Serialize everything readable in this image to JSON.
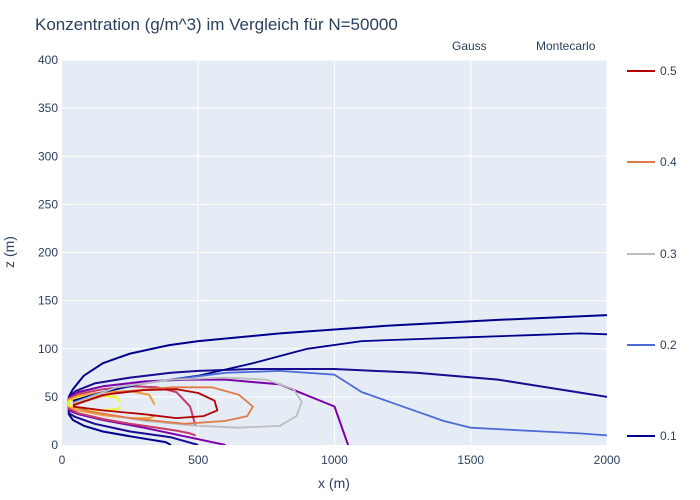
{
  "chart_data": {
    "type": "line",
    "title": "Konzentration (g/m^3) im Vergleich für N=50000",
    "xlabel": "x (m)",
    "ylabel": "z (m)",
    "xlim": [
      0,
      2000
    ],
    "ylim": [
      0,
      400
    ],
    "x_ticks": [
      "0",
      "500",
      "1000",
      "1500",
      "2000"
    ],
    "y_ticks": [
      "0",
      "50",
      "100",
      "150",
      "200",
      "250",
      "300",
      "350",
      "400"
    ],
    "grid": true,
    "legend": {
      "placement": "top-right",
      "entries": [
        "Gauss",
        "Montecarlo"
      ]
    },
    "colorbar": {
      "levels": [
        "0.1",
        "0.2",
        "0.3",
        "0.4",
        "0.5"
      ]
    },
    "colors": {
      "plot_bg": "#e5ecf6",
      "grid": "#ffffff",
      "text": "#2a3f5f",
      "level_0_1": "#00008b",
      "level_0_15": "#1a0c91",
      "level_0_2": "#7b00a8",
      "level_0_25": "#b5108f",
      "level_0_3": "#c63c6a",
      "level_0_35": "#e06040",
      "level_0_4": "#f19e3c",
      "level_0_5": "#f0f921",
      "mc_0_1": "#00008b",
      "mc_0_2": "#4d6bd6",
      "mc_0_3": "#bdbdbd",
      "mc_0_4": "#e07b49",
      "mc_0_5": "#b30000"
    },
    "series": [
      {
        "name": "Gauss",
        "level": 0.1,
        "x": [
          25,
          40,
          80,
          150,
          250,
          380,
          400,
          500,
          800,
          1200,
          1600,
          2000
        ],
        "upper_z": [
          50,
          58,
          72,
          85,
          95,
          103,
          104,
          108,
          116,
          124,
          130,
          135
        ],
        "lower_z": [
          32,
          26,
          20,
          14,
          9,
          3,
          0
        ]
      },
      {
        "name": "Gauss",
        "level": 0.15,
        "x": [
          25,
          50,
          120,
          250,
          400,
          500,
          700,
          1000,
          1300,
          1600,
          2000
        ],
        "upper_z": [
          50,
          56,
          64,
          70,
          75,
          77,
          79,
          79,
          75,
          68,
          50
        ],
        "lower_z": [
          33,
          29,
          22,
          14,
          8,
          0
        ]
      },
      {
        "name": "Gauss",
        "level": 0.2,
        "x": [
          25,
          60,
          150,
          300,
          450,
          600,
          800,
          1000,
          1050
        ],
        "upper_z": [
          49,
          55,
          61,
          66,
          68,
          68,
          63,
          40,
          0
        ],
        "lower_z": [
          36,
          32,
          26,
          18,
          9,
          0
        ]
      },
      {
        "name": "Gauss",
        "level": 0.3,
        "x": [
          25,
          60,
          150,
          250,
          350,
          420,
          470,
          490
        ],
        "upper_z": [
          48,
          53,
          58,
          61,
          60,
          55,
          40,
          20
        ],
        "lower_z": [
          38,
          33,
          27,
          22,
          18,
          15,
          12,
          10
        ]
      },
      {
        "name": "Gauss",
        "level": 0.4,
        "x": [
          25,
          60,
          150,
          250,
          320,
          340
        ],
        "upper_z": [
          47,
          51,
          55,
          56,
          52,
          42
        ],
        "lower_z": [
          40,
          36,
          31,
          28,
          28,
          30
        ]
      },
      {
        "name": "Gauss",
        "level": 0.5,
        "x": [
          25,
          60,
          130,
          200,
          215
        ],
        "upper_z": [
          45,
          49,
          51,
          50,
          44
        ],
        "lower_z": [
          41,
          38,
          36,
          37,
          39
        ]
      },
      {
        "name": "Montecarlo",
        "level": 0.1,
        "x": [
          40,
          150,
          300,
          500,
          700,
          900,
          1100,
          1300,
          1500,
          1700,
          1900,
          2000
        ],
        "z": [
          46,
          55,
          64,
          72,
          85,
          100,
          108,
          110,
          112,
          114,
          116,
          115
        ]
      },
      {
        "name": "Montecarlo",
        "level": 0.2,
        "x": [
          40,
          200,
          400,
          600,
          800,
          1000,
          1100,
          1200,
          1300,
          1400,
          1500,
          1700,
          1900,
          2000
        ],
        "z": [
          44,
          60,
          68,
          75,
          77,
          73,
          55,
          45,
          35,
          25,
          18,
          15,
          12,
          10
        ]
      },
      {
        "name": "Montecarlo",
        "level": 0.3,
        "x": [
          40,
          200,
          400,
          600,
          750,
          850,
          880,
          860,
          800,
          650,
          500,
          300,
          100,
          40
        ],
        "z": [
          43,
          60,
          68,
          70,
          68,
          58,
          45,
          30,
          20,
          18,
          20,
          25,
          35,
          40
        ]
      },
      {
        "name": "Montecarlo",
        "level": 0.4,
        "x": [
          40,
          200,
          400,
          550,
          650,
          700,
          680,
          600,
          450,
          250,
          100,
          40
        ],
        "z": [
          42,
          55,
          60,
          60,
          52,
          40,
          30,
          25,
          22,
          28,
          35,
          40
        ]
      },
      {
        "name": "Montecarlo",
        "level": 0.5,
        "x": [
          40,
          150,
          300,
          420,
          500,
          560,
          570,
          520,
          420,
          300,
          150,
          40
        ],
        "z": [
          41,
          52,
          57,
          58,
          54,
          46,
          36,
          30,
          28,
          32,
          36,
          40
        ]
      }
    ]
  }
}
